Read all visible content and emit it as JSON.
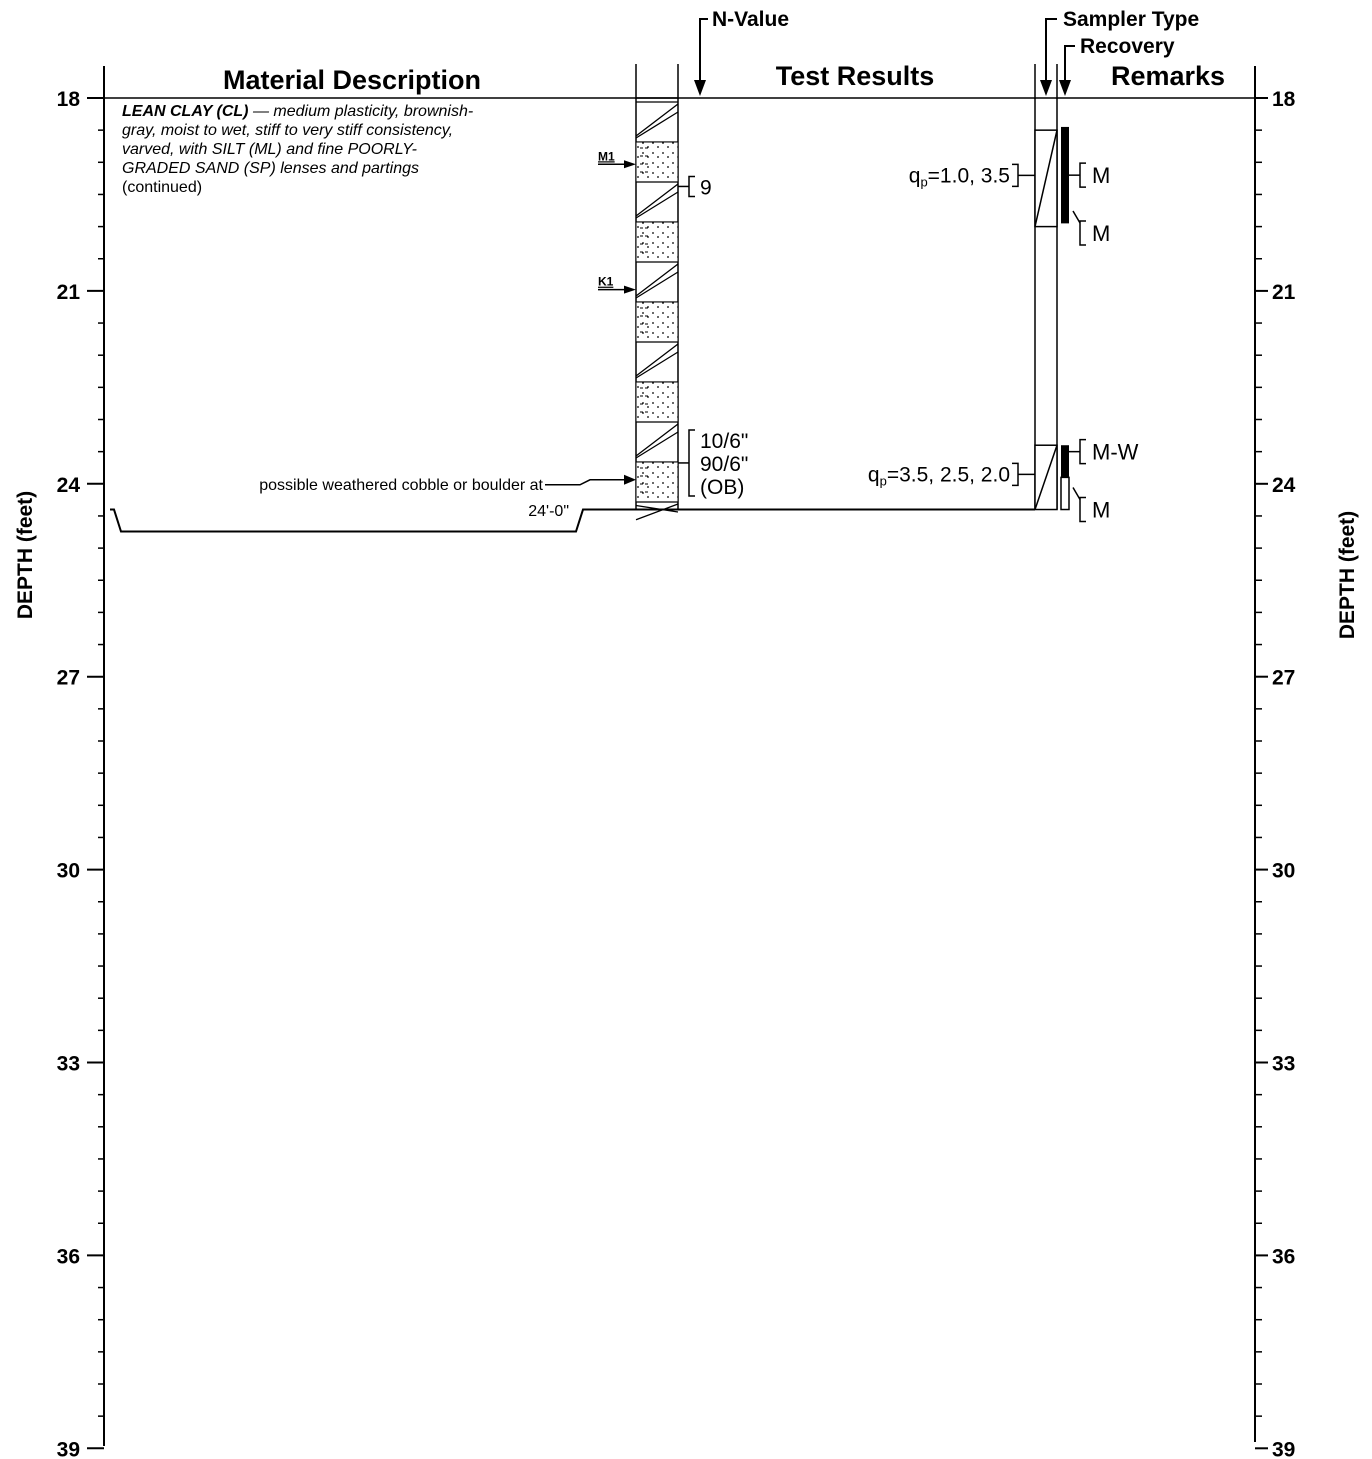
{
  "headers": {
    "material_description": "Material Description",
    "test_results": "Test Results",
    "remarks": "Remarks",
    "n_value": "N-Value",
    "sampler_type": "Sampler Type",
    "recovery": "Recovery"
  },
  "axis": {
    "label": "DEPTH  (feet)",
    "min": 18,
    "max": 39,
    "major_ticks": [
      "18",
      "21",
      "24",
      "27",
      "30",
      "33",
      "36",
      "39"
    ],
    "minor_step": 0.5
  },
  "stratum": {
    "top": 18,
    "bottom": 24.4,
    "pattern": "clay-sand-layers",
    "description_bold": "LEAN CLAY (CL)",
    "description_lines": [
      " — medium plasticity, brownish-",
      "gray, moist to wet, stiff to very stiff consistency,",
      "varved, with SILT (ML) and fine POORLY-",
      "GRADED SAND (SP) lenses and partings"
    ],
    "continued": "(continued)",
    "note_line1": "possible weathered cobble or boulder at",
    "note_line2": "24'-0\"",
    "note_depth": 24
  },
  "markers": [
    {
      "label": "M1",
      "depth": 19.0
    },
    {
      "label": "K1",
      "depth": 20.95
    }
  ],
  "n_values": [
    {
      "depth": 19.5,
      "lines": [
        "9"
      ]
    },
    {
      "depth": 23.8,
      "lines": [
        "10/6\"",
        "90/6\"",
        "(OB)"
      ]
    }
  ],
  "samples": [
    {
      "top": 18.5,
      "bottom": 20.0,
      "test_label": "q",
      "test_sub": "p",
      "test_value": "=1.0, 3.5",
      "recovery_top": 18.45,
      "recovery_bottom": 19.95
    },
    {
      "top": 23.4,
      "bottom": 24.4,
      "test_label": "q",
      "test_sub": "p",
      "test_value": "=3.5, 2.5, 2.0",
      "recovery_top": 23.4,
      "recovery_bottom": 23.9
    }
  ],
  "remarks": [
    {
      "depth": 19.2,
      "text": "M"
    },
    {
      "depth": 20.1,
      "text": "M"
    },
    {
      "depth": 23.5,
      "text": "M-W"
    },
    {
      "depth": 24.4,
      "text": "M"
    }
  ]
}
